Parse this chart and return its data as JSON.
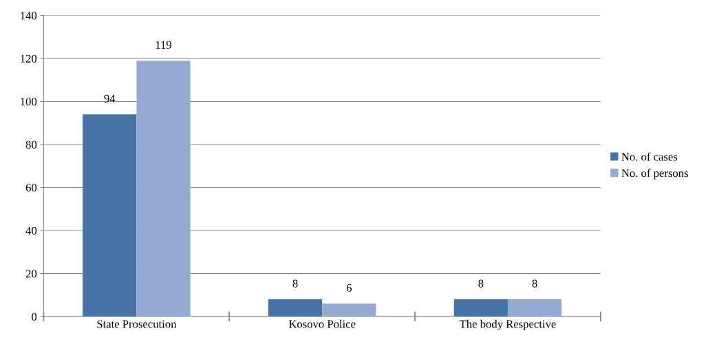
{
  "chart_data": {
    "type": "bar",
    "categories": [
      "State Prosecution",
      "Kosovo Police",
      "The body Respective"
    ],
    "series": [
      {
        "name": "No. of cases",
        "color": "#4573a7",
        "values": [
          94,
          8,
          8
        ]
      },
      {
        "name": "No. of persons",
        "color": "#95aad3",
        "values": [
          119,
          6,
          8
        ]
      }
    ],
    "ylim": [
      0,
      140
    ],
    "yticks": [
      0,
      20,
      40,
      60,
      80,
      100,
      120,
      140
    ],
    "grid": "y",
    "legend": "right",
    "data_labels": true
  }
}
